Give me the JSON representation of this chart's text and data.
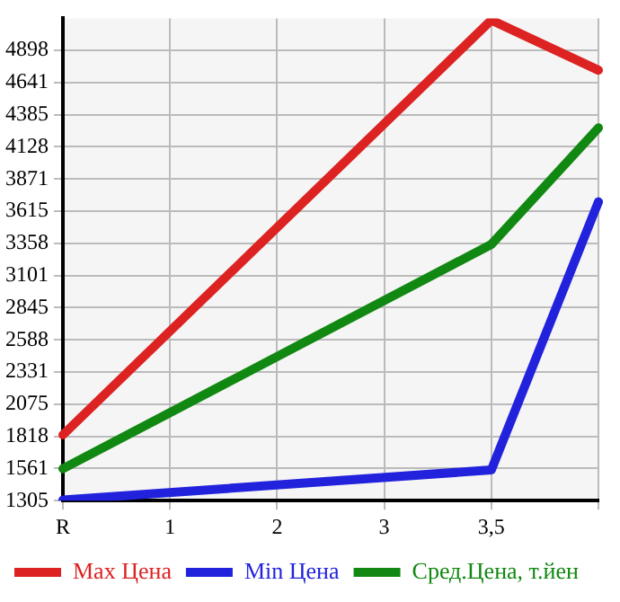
{
  "chart_data": {
    "type": "line",
    "categories": [
      "R",
      "1",
      "2",
      "3",
      "3,5",
      null
    ],
    "series": [
      {
        "name": "Max Цена",
        "color": "#dd2222",
        "values": [
          1830,
          null,
          null,
          null,
          5140,
          4740
        ]
      },
      {
        "name": "Min Цена",
        "color": "#2222dd",
        "values": [
          1310,
          null,
          null,
          null,
          1550,
          3690
        ]
      },
      {
        "name": "Сред.Цена, т.йен",
        "color": "#118811",
        "values": [
          1560,
          null,
          null,
          null,
          3350,
          4280
        ]
      }
    ],
    "ylim": [
      1305,
      5154
    ],
    "yticks": [
      1305,
      1561,
      1818,
      2075,
      2331,
      2588,
      2845,
      3101,
      3358,
      3615,
      3871,
      4128,
      4385,
      4641,
      4898
    ],
    "grid": true,
    "legend": "bottom",
    "marker": "none",
    "line_style": "solid"
  }
}
